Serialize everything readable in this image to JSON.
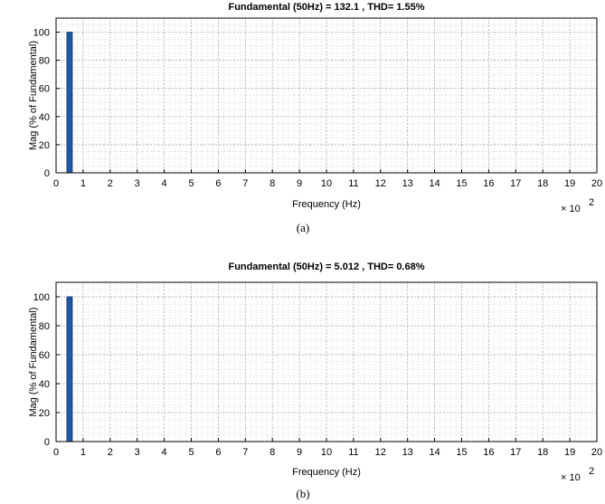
{
  "chart_data": [
    {
      "type": "bar",
      "title": "Fundamental  (50Hz)  = 132.1 , THD=  1.55%",
      "xlabel": "Frequency (Hz)",
      "ylabel": "Mag (% of Fundamental)",
      "x_multiplier_label": "× 10",
      "x_multiplier_exp": "2",
      "caption": "(a)",
      "xlim": [
        0,
        20
      ],
      "ylim": [
        0,
        110
      ],
      "xticks": [
        "0",
        "1",
        "2",
        "3",
        "4",
        "5",
        "6",
        "7",
        "8",
        "9",
        "10",
        "11",
        "12",
        "13",
        "14",
        "15",
        "16",
        "17",
        "18",
        "19",
        "20"
      ],
      "yticks": [
        "0",
        "20",
        "40",
        "60",
        "80",
        "100"
      ],
      "ytick_values": [
        0,
        20,
        40,
        60,
        80,
        100
      ],
      "grid": true,
      "x": [
        0.5
      ],
      "values": [
        100
      ],
      "bar_color": "#1f5aa6"
    },
    {
      "type": "bar",
      "title": "Fundamental (50Hz) = 5.012 , THD= 0.68%",
      "xlabel": "Frequency (Hz)",
      "ylabel": "Mag  (% of Fundamental)",
      "x_multiplier_label": "× 10",
      "x_multiplier_exp": "2",
      "caption": "(b)",
      "xlim": [
        0,
        20
      ],
      "ylim": [
        0,
        110
      ],
      "xticks": [
        "0",
        "1",
        "2",
        "3",
        "4",
        "5",
        "6",
        "7",
        "8",
        "9",
        "10",
        "11",
        "12",
        "13",
        "14",
        "15",
        "16",
        "17",
        "18",
        "19",
        "20"
      ],
      "yticks": [
        "0",
        "20",
        "40",
        "60",
        "80",
        "100"
      ],
      "ytick_values": [
        0,
        20,
        40,
        60,
        80,
        100
      ],
      "grid": true,
      "x": [
        0.5
      ],
      "values": [
        100
      ],
      "bar_color": "#1f5aa6"
    }
  ]
}
